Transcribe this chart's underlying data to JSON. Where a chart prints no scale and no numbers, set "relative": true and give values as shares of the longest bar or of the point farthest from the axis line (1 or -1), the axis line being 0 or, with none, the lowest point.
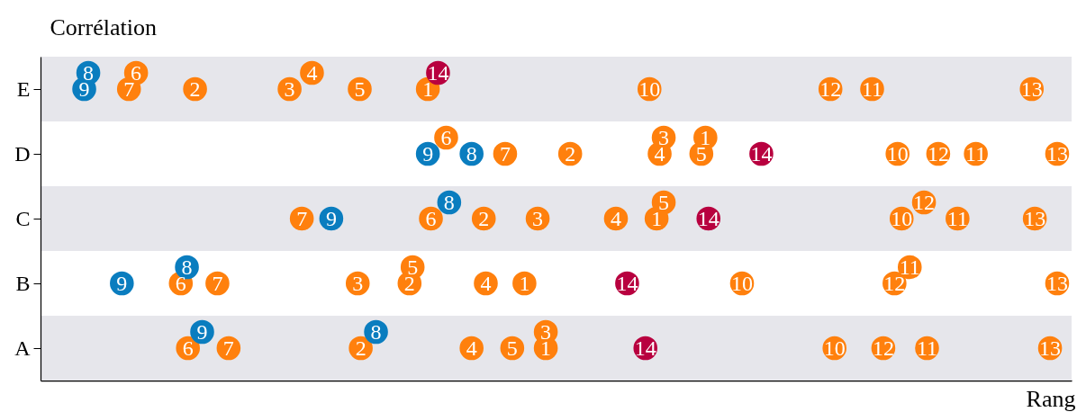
{
  "chart_data": {
    "type": "scatter",
    "orientation": "horizontal",
    "relative": true,
    "xlabel": "Rang",
    "ylabel": "Corrélation",
    "categories": [
      "E",
      "D",
      "C",
      "B",
      "A"
    ],
    "grid": false,
    "marker": "circle",
    "bands": [
      {
        "axis": "y",
        "from": "E",
        "to": "E",
        "color": "#e6e6eb"
      },
      {
        "axis": "y",
        "from": "C",
        "to": "C",
        "color": "#e6e6eb"
      },
      {
        "axis": "y",
        "from": "A",
        "to": "A",
        "color": "#e6e6eb"
      }
    ],
    "series": [
      {
        "name": "1",
        "color": "#ff800d",
        "values": [
          0.381,
          0.654,
          0.606,
          0.476,
          0.497
        ]
      },
      {
        "name": "2",
        "color": "#ff800d",
        "values": [
          0.152,
          0.521,
          0.436,
          0.363,
          0.315
        ]
      },
      {
        "name": "3",
        "color": "#ff800d",
        "values": [
          0.245,
          0.613,
          0.489,
          0.312,
          0.497
        ]
      },
      {
        "name": "4",
        "color": "#ff800d",
        "values": [
          0.267,
          0.609,
          0.566,
          0.438,
          0.424
        ]
      },
      {
        "name": "5",
        "color": "#ff800d",
        "values": [
          0.314,
          0.65,
          0.613,
          0.366,
          0.464
        ]
      },
      {
        "name": "6",
        "color": "#ff800d",
        "values": [
          0.094,
          0.399,
          0.384,
          0.138,
          0.145
        ]
      },
      {
        "name": "7",
        "color": "#ff800d",
        "values": [
          0.087,
          0.457,
          0.257,
          0.174,
          0.185
        ]
      },
      {
        "name": "8",
        "color": "#0a7dbf",
        "values": [
          0.047,
          0.424,
          0.402,
          0.144,
          0.33
        ]
      },
      {
        "name": "9",
        "color": "#0a7dbf",
        "values": [
          0.043,
          0.381,
          0.286,
          0.08,
          0.159
        ]
      },
      {
        "name": "10",
        "color": "#ff800d",
        "values": [
          0.599,
          0.843,
          0.847,
          0.69,
          0.781
        ]
      },
      {
        "name": "11",
        "color": "#ff800d",
        "values": [
          0.818,
          0.92,
          0.902,
          0.855,
          0.872
        ]
      },
      {
        "name": "12",
        "color": "#ff800d",
        "values": [
          0.777,
          0.883,
          0.869,
          0.84,
          0.829
        ]
      },
      {
        "name": "13",
        "color": "#ff800d",
        "values": [
          0.975,
          1,
          0.978,
          1,
          0.993
        ]
      },
      {
        "name": "14",
        "color": "#b8003f",
        "values": [
          0.391,
          0.709,
          0.657,
          0.577,
          0.595
        ]
      }
    ]
  }
}
